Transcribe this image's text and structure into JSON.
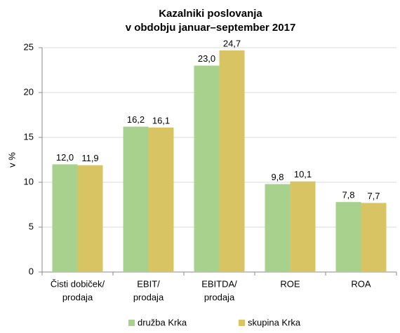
{
  "chart_data": {
    "type": "bar",
    "title": "Kazalniki poslovanja",
    "subtitle": "v obdobju januar–september 2017",
    "y_label": "v %",
    "categories": [
      [
        "Čisti dobiček/",
        "prodaja"
      ],
      [
        "EBIT/",
        "prodaja"
      ],
      [
        "EBITDA/",
        "prodaja"
      ],
      [
        "ROE"
      ],
      [
        "ROA"
      ]
    ],
    "series": [
      {
        "name": "družba Krka",
        "color": "#a9d18e",
        "values": [
          12.0,
          16.2,
          23.0,
          9.8,
          7.8
        ],
        "value_labels": [
          "12,0",
          "16,2",
          "23,0",
          "9,8",
          "7,8"
        ]
      },
      {
        "name": "skupina Krka",
        "color": "#d9c464",
        "values": [
          11.9,
          16.1,
          24.7,
          10.1,
          7.7
        ],
        "value_labels": [
          "11,9",
          "16,1",
          "24,7",
          "10,1",
          "7,7"
        ]
      }
    ],
    "ylim": [
      0,
      25
    ],
    "yticks": [
      0,
      5,
      10,
      15,
      20,
      25
    ],
    "grid": true,
    "legend": "bottom"
  }
}
